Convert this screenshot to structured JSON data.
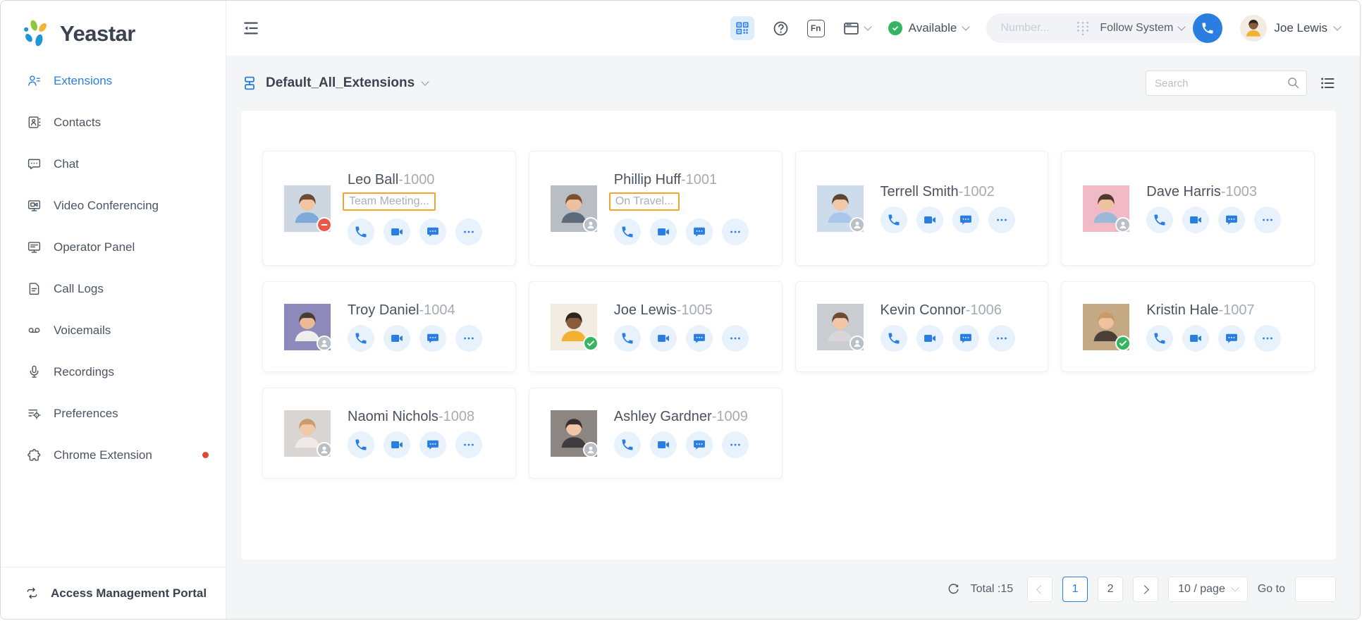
{
  "brand": {
    "name": "Yeastar",
    "colors": {
      "blue": "#1e96d7",
      "green": "#8dc63f",
      "yellow": "#f5b335"
    }
  },
  "sidebar": {
    "items": [
      {
        "label": "Extensions",
        "icon": "extensions-icon",
        "active": true
      },
      {
        "label": "Contacts",
        "icon": "contacts-icon",
        "active": false
      },
      {
        "label": "Chat",
        "icon": "chat-icon",
        "active": false
      },
      {
        "label": "Video Conferencing",
        "icon": "video-conferencing-icon",
        "active": false
      },
      {
        "label": "Operator Panel",
        "icon": "operator-panel-icon",
        "active": false
      },
      {
        "label": "Call Logs",
        "icon": "call-logs-icon",
        "active": false
      },
      {
        "label": "Voicemails",
        "icon": "voicemails-icon",
        "active": false
      },
      {
        "label": "Recordings",
        "icon": "recordings-icon",
        "active": false
      },
      {
        "label": "Preferences",
        "icon": "preferences-icon",
        "active": false
      },
      {
        "label": "Chrome Extension",
        "icon": "chrome-extension-icon",
        "active": false,
        "notification_dot": true,
        "dot_color": "#e2472f"
      }
    ],
    "footer": {
      "label": "Access Management Portal",
      "icon": "portal-switch-icon"
    }
  },
  "topbar": {
    "collapse_icon": "menu-fold-icon",
    "qr_icon": "qr-code-icon",
    "help_icon": "help-icon",
    "fn_key_label": "Fn",
    "window_icon": "app-window-icon",
    "presence": {
      "label": "Available",
      "color": "#33b562"
    },
    "dialer": {
      "number_placeholder": "Number...",
      "dialpad_icon": "dialpad-icon",
      "audio_device_label": "Follow System",
      "call_button_color": "#2a7de1"
    },
    "user": {
      "name": "Joe Lewis",
      "avatar": {
        "bg": "#f3ece3",
        "hair": "#2d2520",
        "skin": "#8a5a3c",
        "shirt": "#f2b231"
      }
    }
  },
  "toolbar": {
    "group_label": "Default_All_Extensions",
    "group_icon": "organization-icon",
    "search_placeholder": "Search",
    "view_toggle_icon": "list-view-icon"
  },
  "status_highlight_color": "#efa52e",
  "card_actions": [
    {
      "name": "call",
      "icon": "phone-icon"
    },
    {
      "name": "video-call",
      "icon": "video-icon"
    },
    {
      "name": "chat",
      "icon": "chat-bubble-icon"
    },
    {
      "name": "more",
      "icon": "more-icon"
    }
  ],
  "extensions": [
    {
      "name": "Leo Ball",
      "number_label": "-1000",
      "presence": "dnd",
      "status_note": "Team Meeting...",
      "status_highlighted": true,
      "avatar": {
        "bg": "#cdd7e2",
        "hair": "#6b4a35",
        "skin": "#f2c5a2",
        "shirt": "#7fa9d9"
      }
    },
    {
      "name": "Phillip Huff",
      "number_label": "-1001",
      "presence": "away",
      "status_note": "On Travel...",
      "status_highlighted": true,
      "avatar": {
        "bg": "#b9bdc4",
        "hair": "#7a5230",
        "skin": "#eec09e",
        "shirt": "#5c6a79"
      }
    },
    {
      "name": "Terrell Smith",
      "number_label": "-1002",
      "presence": "away",
      "avatar": {
        "bg": "#ccdcec",
        "hair": "#5f4632",
        "skin": "#f1c9a9",
        "shirt": "#a9c7e9"
      }
    },
    {
      "name": "Dave Harris",
      "number_label": "-1003",
      "presence": "away",
      "avatar": {
        "bg": "#f2b9c6",
        "hair": "#4f3a2d",
        "skin": "#eec19f",
        "shirt": "#9cb8d8"
      }
    },
    {
      "name": "Troy Daniel",
      "number_label": "-1004",
      "presence": "away",
      "avatar": {
        "bg": "#8d89ba",
        "hair": "#4a3c33",
        "skin": "#e9ba95",
        "shirt": "#efeeec"
      }
    },
    {
      "name": "Joe Lewis",
      "number_label": "-1005",
      "presence": "available",
      "avatar": {
        "bg": "#f3ece3",
        "hair": "#2d2520",
        "skin": "#8a5a3c",
        "shirt": "#f2b231"
      }
    },
    {
      "name": "Kevin Connor",
      "number_label": "-1006",
      "presence": "away",
      "avatar": {
        "bg": "#c9ccd1",
        "hair": "#6e4a33",
        "skin": "#f1c5a5",
        "shirt": "#d9d5d9"
      }
    },
    {
      "name": "Kristin Hale",
      "number_label": "-1007",
      "presence": "available",
      "avatar": {
        "bg": "#c5a985",
        "hair": "#c89a6a",
        "skin": "#eec1a1",
        "shirt": "#4a4038"
      }
    },
    {
      "name": "Naomi Nichols",
      "number_label": "-1008",
      "presence": "away",
      "avatar": {
        "bg": "#d9d5d3",
        "hair": "#c99b6f",
        "skin": "#f1c9a9",
        "shirt": "#f1e9e5"
      }
    },
    {
      "name": "Ashley Gardner",
      "number_label": "-1009",
      "presence": "away",
      "avatar": {
        "bg": "#8b8681",
        "hair": "#3a2f2c",
        "skin": "#f1c5a5",
        "shirt": "#403b40"
      }
    }
  ],
  "presence_colors": {
    "dnd": "#e8584b",
    "away": "#b9bfc6",
    "available": "#33b562"
  },
  "pagination": {
    "refresh_icon": "refresh-icon",
    "total_label": "Total :15",
    "prev_enabled": false,
    "pages": [
      {
        "label": "1",
        "active": true
      },
      {
        "label": "2",
        "active": false
      }
    ],
    "next_enabled": true,
    "page_size_label": "10 / page",
    "goto_label": "Go to",
    "goto_value": ""
  }
}
